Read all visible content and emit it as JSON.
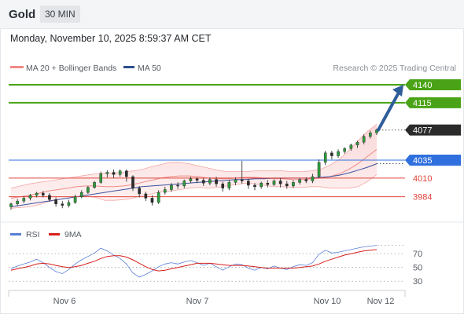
{
  "header": {
    "title": "Gold",
    "timeframe": "30 MIN"
  },
  "datetime": "Monday, November 10, 2025 8:59:37 AM CET",
  "legend": {
    "bollinger": "MA 20 + Bollinger Bands",
    "ma50": "MA 50",
    "credit": "Research © 2025 Trading Central"
  },
  "rsi_legend": {
    "rsi": "RSI",
    "ma": "9MA"
  },
  "colors": {
    "green": "#4aa316",
    "blue": "#2f6fde",
    "red": "#e0443c",
    "band": "#f6c9c9",
    "ma50": "#3b52a0",
    "rsi": "#5b7fd6",
    "rsi_ma": "#d8201c",
    "arrow": "#2f5d9a",
    "current": "#2b2b2b"
  },
  "chart_data": [
    {
      "type": "candlestick",
      "title": "Gold",
      "timeframe": "30 MIN",
      "x_labels": [
        "Nov 6",
        "Nov 7",
        "Nov 10",
        "Nov 12"
      ],
      "ylim": [
        3965,
        4152
      ],
      "levels": [
        {
          "value": 4140,
          "label": "4140",
          "kind": "target",
          "color": "#4aa316"
        },
        {
          "value": 4115,
          "label": "4115",
          "kind": "resistance",
          "color": "#4aa316"
        },
        {
          "value": 4077,
          "label": "4077",
          "kind": "current",
          "color": "#2b2b2b"
        },
        {
          "value": 4035,
          "label": "4035",
          "kind": "pivot",
          "color": "#2f6fde"
        },
        {
          "value": 4010,
          "label": "4010",
          "kind": "support",
          "color": "#e0443c"
        },
        {
          "value": 3984,
          "label": "3984",
          "kind": "support",
          "color": "#e0443c"
        }
      ],
      "series": [
        {
          "name": "MA 20 + Bollinger Bands",
          "ma": [
            3982,
            3984,
            3986,
            3989,
            3992,
            3994,
            3996,
            3998,
            3999,
            3999,
            3998,
            3998,
            3999,
            4001,
            4004,
            4007,
            4010,
            4012,
            4013,
            4013,
            4012,
            4010,
            4009,
            4009,
            4010,
            4011,
            4011,
            4010,
            4009,
            4009,
            4008,
            4008,
            4009,
            4010,
            4012,
            4016,
            4022,
            4030,
            4040,
            4050
          ],
          "upper": [
            3996,
            3999,
            4002,
            4004,
            4006,
            4008,
            4010,
            4012,
            4014,
            4016,
            4017,
            4017,
            4018,
            4020,
            4022,
            4026,
            4029,
            4032,
            4032,
            4030,
            4027,
            4024,
            4021,
            4019,
            4019,
            4019,
            4020,
            4020,
            4020,
            4020,
            4019,
            4019,
            4020,
            4022,
            4028,
            4036,
            4048,
            4062,
            4075,
            4085
          ],
          "lower": [
            3968,
            3969,
            3970,
            3973,
            3977,
            3980,
            3982,
            3984,
            3985,
            3983,
            3979,
            3979,
            3980,
            3982,
            3986,
            3988,
            3991,
            3992,
            3994,
            3996,
            3997,
            3996,
            3997,
            3999,
            4001,
            4003,
            4002,
            4000,
            3998,
            3998,
            3997,
            3997,
            3998,
            3998,
            3996,
            3996,
            3996,
            3998,
            4005,
            4015
          ]
        },
        {
          "name": "MA 50",
          "values": [
            3970,
            3972,
            3974,
            3976,
            3978,
            3980,
            3982,
            3984,
            3986,
            3988,
            3990,
            3992,
            3994,
            3996,
            3998,
            3999,
            4000,
            4001,
            4002,
            4003,
            4004,
            4005,
            4006,
            4007,
            4008,
            4008,
            4009,
            4009,
            4010,
            4010,
            4010,
            4010,
            4010,
            4011,
            4012,
            4014,
            4017,
            4021,
            4025,
            4030
          ]
        }
      ],
      "candles": [
        [
          3970,
          3974,
          3966,
          3976
        ],
        [
          3974,
          3978,
          3971,
          3981
        ],
        [
          3978,
          3982,
          3975,
          3985
        ],
        [
          3982,
          3986,
          3979,
          3988
        ],
        [
          3986,
          3989,
          3983,
          3991
        ],
        [
          3989,
          3986,
          3983,
          3992
        ],
        [
          3986,
          3980,
          3977,
          3989
        ],
        [
          3980,
          3974,
          3970,
          3983
        ],
        [
          3974,
          3972,
          3968,
          3978
        ],
        [
          3972,
          3976,
          3969,
          3980
        ],
        [
          3976,
          3984,
          3974,
          3987
        ],
        [
          3984,
          3990,
          3982,
          3993
        ],
        [
          3990,
          3997,
          3988,
          3999
        ],
        [
          3997,
          4004,
          3995,
          4006
        ],
        [
          4004,
          4016,
          4002,
          4019
        ],
        [
          4016,
          4018,
          4011,
          4021
        ],
        [
          4018,
          4015,
          4010,
          4022
        ],
        [
          4015,
          4020,
          4012,
          4022
        ],
        [
          4020,
          4012,
          4005,
          4022
        ],
        [
          4012,
          3996,
          3992,
          4014
        ],
        [
          3996,
          3988,
          3983,
          3999
        ],
        [
          3988,
          3982,
          3978,
          3991
        ],
        [
          3982,
          3976,
          3972,
          3986
        ],
        [
          3976,
          3990,
          3974,
          3993
        ],
        [
          3990,
          3994,
          3987,
          3998
        ],
        [
          3994,
          4000,
          3991,
          4003
        ],
        [
          4000,
          3999,
          3995,
          4004
        ],
        [
          3999,
          4006,
          3996,
          4008
        ],
        [
          4006,
          4009,
          4003,
          4012
        ],
        [
          4009,
          4007,
          4003,
          4011
        ],
        [
          4007,
          4003,
          3999,
          4010
        ],
        [
          4003,
          4008,
          4000,
          4011
        ],
        [
          4008,
          4002,
          3998,
          4012
        ],
        [
          4002,
          3996,
          3991,
          4005
        ],
        [
          3996,
          4004,
          3993,
          4008
        ],
        [
          4004,
          4008,
          4000,
          4011
        ],
        [
          4008,
          4006,
          4002,
          4034
        ],
        [
          4006,
          4000,
          3995,
          4009
        ],
        [
          4000,
          3998,
          3993,
          4003
        ],
        [
          3998,
          4003,
          3995,
          4005
        ],
        [
          4003,
          4001,
          3997,
          4007
        ],
        [
          4001,
          4006,
          3999,
          4008
        ],
        [
          4006,
          4002,
          3997,
          4010
        ],
        [
          4002,
          3999,
          3995,
          4006
        ],
        [
          3999,
          4004,
          3996,
          4007
        ],
        [
          4004,
          4008,
          4001,
          4010
        ],
        [
          4008,
          4006,
          4003,
          4011
        ],
        [
          4006,
          4012,
          4003,
          4016
        ],
        [
          4012,
          4032,
          4010,
          4036
        ],
        [
          4032,
          4045,
          4028,
          4048
        ],
        [
          4045,
          4041,
          4036,
          4048
        ],
        [
          4041,
          4047,
          4038,
          4050
        ],
        [
          4047,
          4051,
          4044,
          4053
        ],
        [
          4051,
          4056,
          4048,
          4058
        ],
        [
          4056,
          4060,
          4052,
          4062
        ],
        [
          4060,
          4068,
          4057,
          4071
        ],
        [
          4068,
          4073,
          4065,
          4076
        ],
        [
          4073,
          4077,
          4070,
          4079
        ]
      ]
    },
    {
      "type": "line",
      "title": "RSI",
      "ylim": [
        20,
        85
      ],
      "yticks": [
        70,
        50,
        30
      ],
      "series": [
        {
          "name": "RSI",
          "values": [
            48,
            52,
            55,
            58,
            62,
            57,
            50,
            44,
            41,
            47,
            55,
            61,
            66,
            71,
            78,
            74,
            68,
            63,
            55,
            42,
            36,
            40,
            45,
            51,
            55,
            57,
            55,
            58,
            60,
            57,
            53,
            56,
            51,
            46,
            51,
            55,
            54,
            49,
            46,
            50,
            48,
            52,
            49,
            47,
            51,
            54,
            53,
            57,
            69,
            75,
            71,
            72,
            74,
            76,
            78,
            80,
            81,
            82
          ]
        },
        {
          "name": "9MA",
          "values": [
            46,
            48,
            50,
            52,
            55,
            56,
            55,
            53,
            51,
            50,
            51,
            53,
            56,
            59,
            63,
            66,
            67,
            67,
            65,
            61,
            56,
            51,
            47,
            45,
            46,
            48,
            50,
            52,
            54,
            56,
            56,
            56,
            55,
            54,
            53,
            53,
            53,
            52,
            51,
            50,
            49,
            49,
            49,
            49,
            49,
            50,
            51,
            52,
            55,
            59,
            62,
            65,
            68,
            70,
            72,
            74,
            75,
            76
          ]
        }
      ]
    }
  ]
}
